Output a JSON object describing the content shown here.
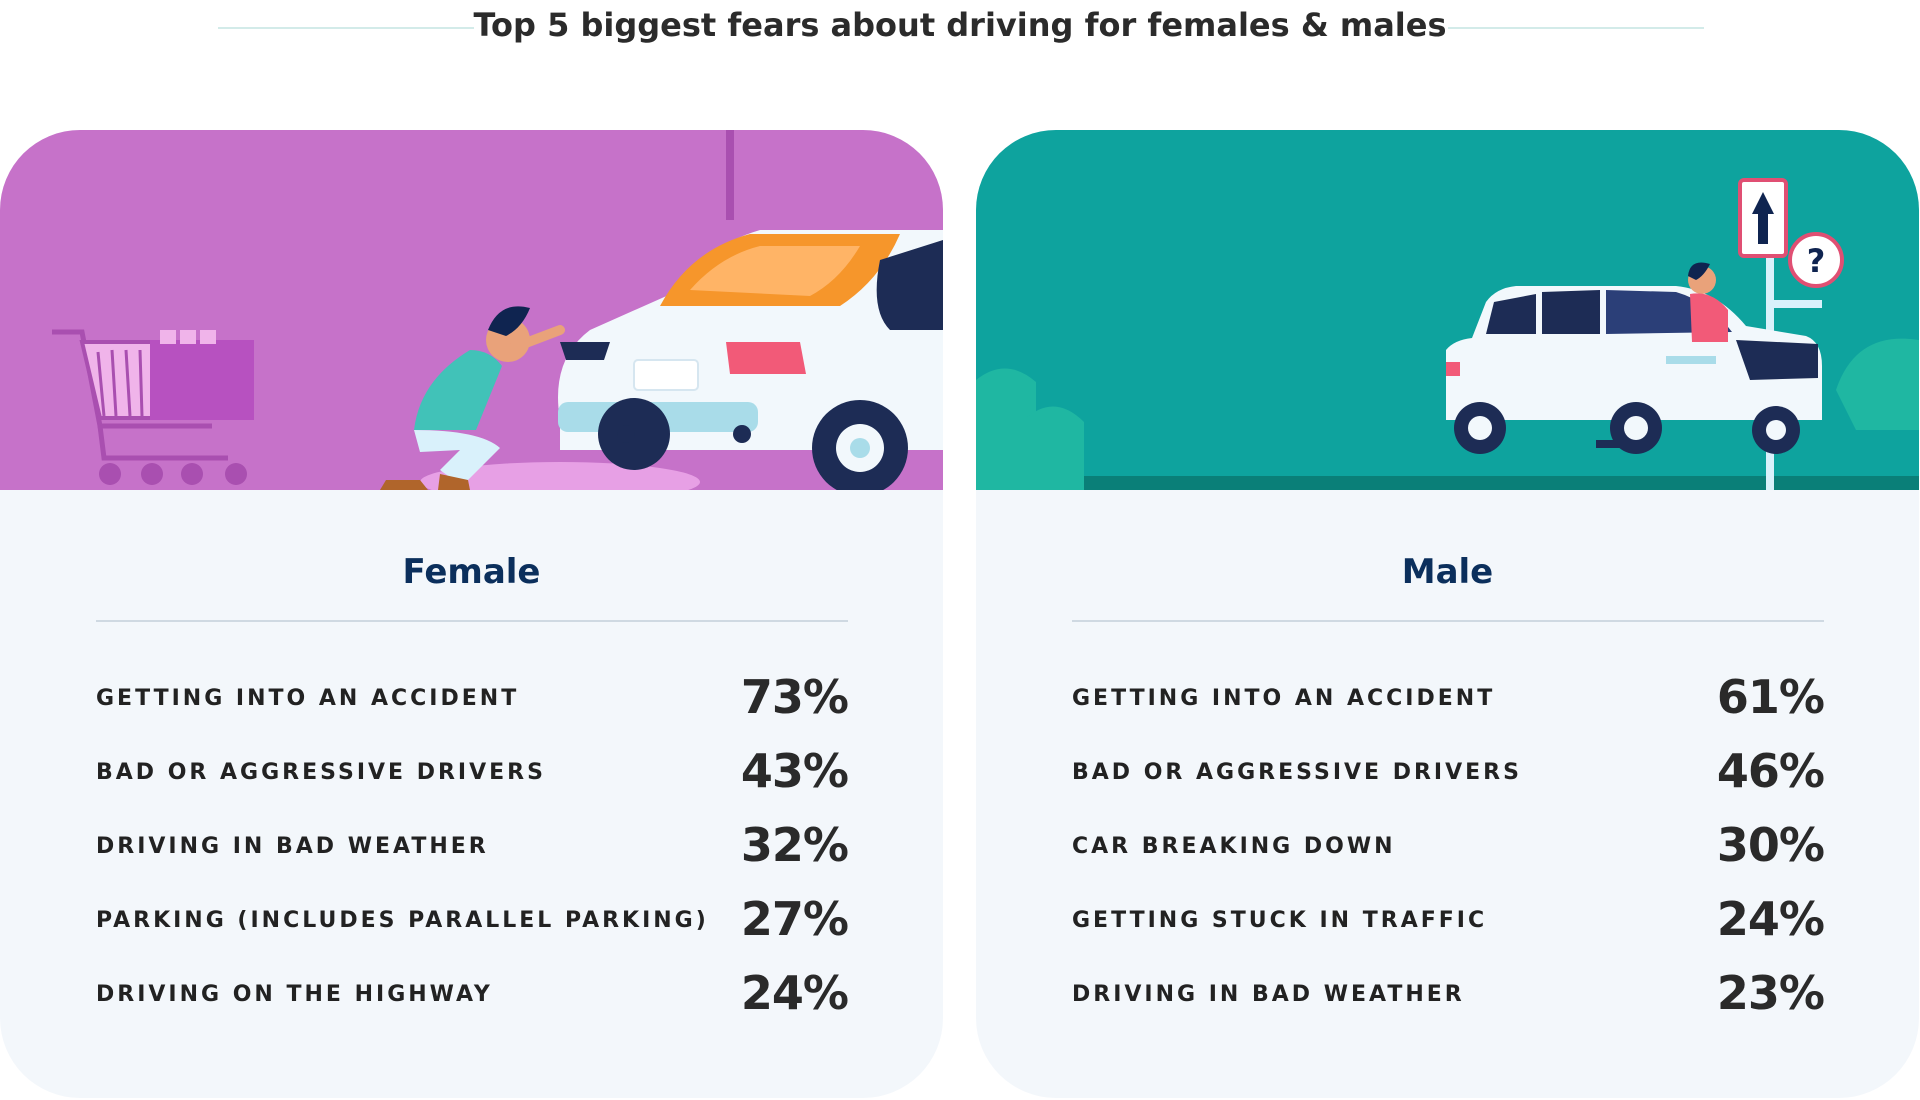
{
  "title": "Top 5 biggest fears about driving for females & males",
  "colors": {
    "female_accent": "#c672c9",
    "male_accent": "#0ea39e",
    "heading": "#0b2f5c",
    "card_background": "#f3f7fb"
  },
  "chart_data": [
    {
      "type": "table",
      "title": "Female",
      "categories": [
        "GETTING INTO AN ACCIDENT",
        "BAD OR AGGRESSIVE DRIVERS",
        "DRIVING IN BAD WEATHER",
        "PARKING (INCLUDES PARALLEL PARKING)",
        "DRIVING ON THE HIGHWAY"
      ],
      "values": [
        73,
        43,
        32,
        27,
        24
      ],
      "value_labels": [
        "73%",
        "43%",
        "32%",
        "27%",
        "24%"
      ]
    },
    {
      "type": "table",
      "title": "Male",
      "categories": [
        "GETTING INTO AN ACCIDENT",
        "BAD OR AGGRESSIVE DRIVERS",
        "CAR BREAKING DOWN",
        "GETTING STUCK IN TRAFFIC",
        "DRIVING IN BAD WEATHER"
      ],
      "values": [
        61,
        46,
        30,
        24,
        23
      ],
      "value_labels": [
        "61%",
        "46%",
        "30%",
        "24%",
        "23%"
      ]
    }
  ],
  "illustrations": {
    "female": [
      "shopping-cart-icon",
      "woman-inspecting-dented-car"
    ],
    "male": [
      "one-way-sign-icon",
      "question-sign-icon",
      "man-with-crashed-suv"
    ]
  }
}
